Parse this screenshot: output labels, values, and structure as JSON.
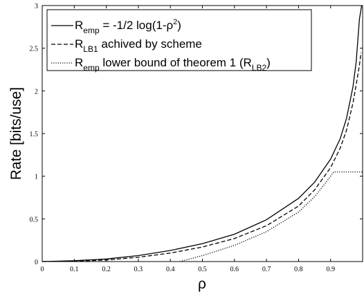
{
  "chart_data": {
    "type": "line",
    "xlabel": "ρ",
    "ylabel": "Rate [bits/use]",
    "xlim": [
      0,
      1
    ],
    "ylim": [
      0,
      3
    ],
    "xticks": [
      "0",
      "0.1",
      "0.2",
      "0.3",
      "0.4",
      "0.5",
      "0.6",
      "0.7",
      "0.8",
      "0.9"
    ],
    "yticks": [
      "0",
      "0.5",
      "1",
      "1.5",
      "2",
      "2.5",
      "3"
    ],
    "grid": false,
    "legend_position": "top-left",
    "legend": [
      {
        "style": "solid",
        "parts": [
          {
            "t": "R",
            "s": "base"
          },
          {
            "t": "emp",
            "s": "sub"
          },
          {
            "t": " = -1/2 log(1-ρ",
            "s": "base"
          },
          {
            "t": "2",
            "s": "sup"
          },
          {
            "t": ")",
            "s": "base"
          }
        ]
      },
      {
        "style": "dashed",
        "parts": [
          {
            "t": "R",
            "s": "base"
          },
          {
            "t": "LB1",
            "s": "sub"
          },
          {
            "t": " achived by scheme",
            "s": "base"
          }
        ]
      },
      {
        "style": "dotted",
        "parts": [
          {
            "t": "R",
            "s": "base"
          },
          {
            "t": "emp",
            "s": "sub"
          },
          {
            "t": " lower bound of theorem 1 (R",
            "s": "base"
          },
          {
            "t": "LB2",
            "s": "sub"
          },
          {
            "t": ")",
            "s": "base"
          }
        ]
      }
    ],
    "series": [
      {
        "style": "solid",
        "x": [
          0,
          0.1,
          0.2,
          0.3,
          0.4,
          0.5,
          0.6,
          0.7,
          0.8,
          0.85,
          0.9,
          0.93,
          0.95,
          0.97,
          0.98,
          0.99,
          0.997
        ],
        "y": [
          0,
          0.01,
          0.03,
          0.07,
          0.13,
          0.21,
          0.32,
          0.49,
          0.74,
          0.93,
          1.2,
          1.44,
          1.68,
          2.05,
          2.34,
          2.84,
          3.0
        ]
      },
      {
        "style": "dashed",
        "x": [
          0,
          0.1,
          0.2,
          0.3,
          0.4,
          0.5,
          0.6,
          0.7,
          0.8,
          0.85,
          0.9,
          0.93,
          0.95,
          0.97,
          0.98,
          0.99,
          0.995
        ],
        "y": [
          0,
          0.004,
          0.018,
          0.05,
          0.1,
          0.17,
          0.27,
          0.42,
          0.65,
          0.84,
          1.1,
          1.33,
          1.54,
          1.86,
          2.07,
          2.3,
          2.45
        ]
      },
      {
        "style": "dotted",
        "x": [
          0.43,
          0.5,
          0.6,
          0.7,
          0.8,
          0.85,
          0.88,
          0.91,
          0.93,
          0.95,
          0.97,
          0.99,
          1.0
        ],
        "y": [
          0,
          0.07,
          0.19,
          0.35,
          0.58,
          0.76,
          0.9,
          1.05,
          1.05,
          1.05,
          1.05,
          1.05,
          1.05
        ]
      }
    ]
  }
}
